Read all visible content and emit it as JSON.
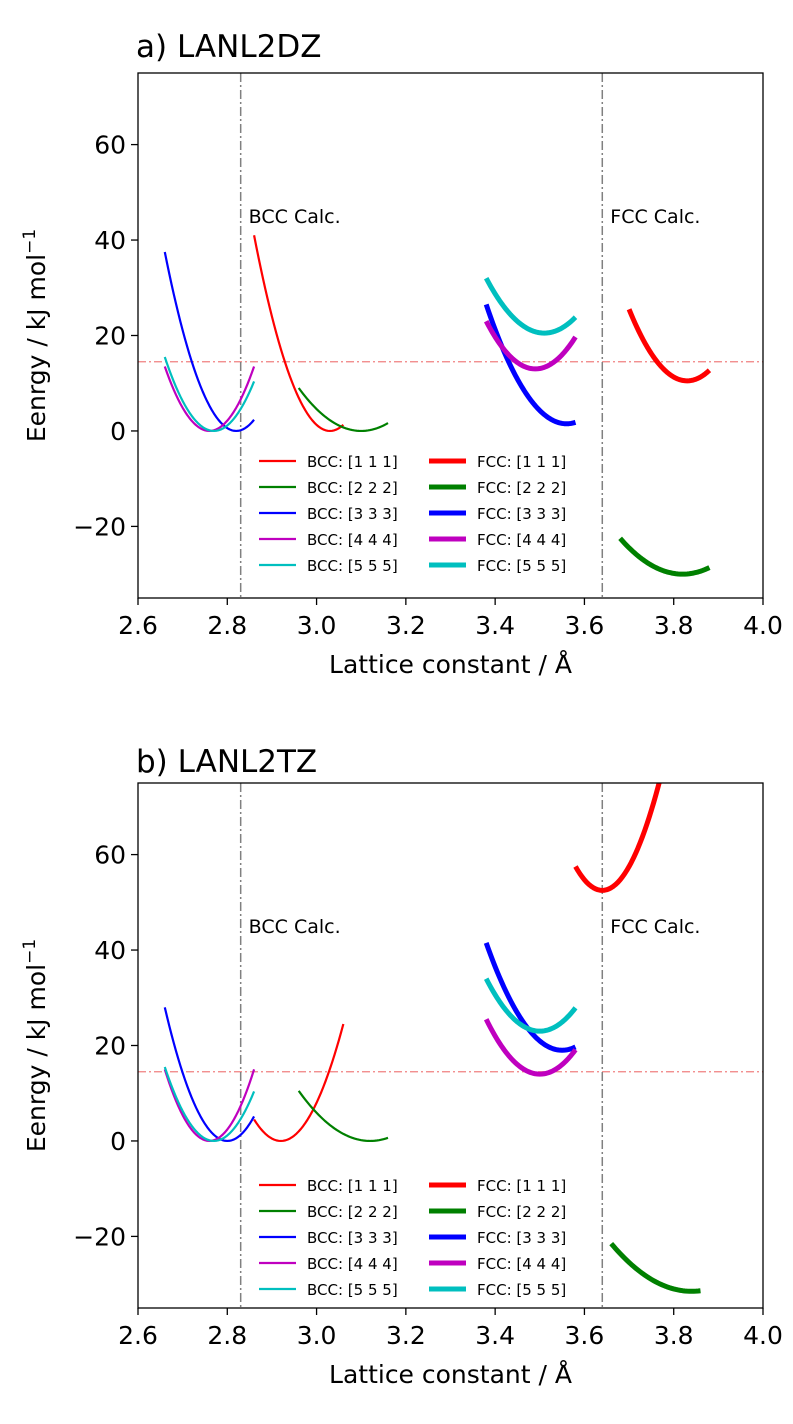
{
  "colors": {
    "red": "#ff0000",
    "green": "#008000",
    "blue": "#0000ff",
    "magenta": "#bf00bf",
    "cyan": "#00bfbf",
    "axis": "#000000",
    "vline": "#808080",
    "hline": "#f08080"
  },
  "chart_data": [
    {
      "type": "line",
      "title": "a) LANL2DZ",
      "xlabel": "Lattice constant / Å",
      "ylabel_main": "Eenrgy / kJ mol",
      "ylabel_sup": "−1",
      "xlim": [
        2.6,
        4.0
      ],
      "ylim": [
        -35,
        75
      ],
      "xticks": [
        2.6,
        2.8,
        3.0,
        3.2,
        3.4,
        3.6,
        3.8,
        4.0
      ],
      "xtick_labels": [
        "2.6",
        "2.8",
        "3.0",
        "3.2",
        "3.4",
        "3.6",
        "3.8",
        "4.0"
      ],
      "yticks": [
        -20,
        0,
        20,
        40,
        60
      ],
      "ytick_labels": [
        "−20",
        "0",
        "20",
        "40",
        "60"
      ],
      "vlines": [
        {
          "x": 2.83,
          "label": "BCC Calc."
        },
        {
          "x": 3.64,
          "label": "FCC Calc."
        }
      ],
      "calc_label_y": 45,
      "hline_y": 14.5,
      "series": [
        {
          "name": "BCC: [1 1 1]",
          "color": "red",
          "width": "thin",
          "x0": 2.86,
          "x1": 3.06,
          "xmin": 3.03,
          "ymin": 0,
          "y_left": 41
        },
        {
          "name": "BCC: [2 2 2]",
          "color": "green",
          "width": "thin",
          "x0": 2.96,
          "x1": 3.16,
          "xmin": 3.1,
          "ymin": 0,
          "y_left": 9
        },
        {
          "name": "BCC: [3 3 3]",
          "color": "blue",
          "width": "thin",
          "x0": 2.66,
          "x1": 2.86,
          "xmin": 2.82,
          "ymin": 0,
          "y_left": 37.5
        },
        {
          "name": "BCC: [4 4 4]",
          "color": "magenta",
          "width": "thin",
          "x0": 2.66,
          "x1": 2.86,
          "xmin": 2.76,
          "ymin": 0,
          "y_left": 13.5
        },
        {
          "name": "BCC: [5 5 5]",
          "color": "cyan",
          "width": "thin",
          "x0": 2.66,
          "x1": 2.86,
          "xmin": 2.77,
          "ymin": 0,
          "y_left": 15.5
        },
        {
          "name": "FCC: [1 1 1]",
          "color": "red",
          "width": "thick",
          "x0": 3.7,
          "x1": 3.88,
          "xmin": 3.83,
          "ymin": 10.5,
          "y_left": 25.5
        },
        {
          "name": "FCC: [2 2 2]",
          "color": "green",
          "width": "thick",
          "x0": 3.68,
          "x1": 3.88,
          "xmin": 3.82,
          "ymin": -30,
          "y_left": -22.5
        },
        {
          "name": "FCC: [3 3 3]",
          "color": "blue",
          "width": "thick",
          "x0": 3.38,
          "x1": 3.58,
          "xmin": 3.56,
          "ymin": 1.5,
          "y_left": 26.5
        },
        {
          "name": "FCC: [4 4 4]",
          "color": "magenta",
          "width": "thick",
          "x0": 3.38,
          "x1": 3.58,
          "xmin": 3.49,
          "ymin": 13,
          "y_left": 23
        },
        {
          "name": "FCC: [5 5 5]",
          "color": "cyan",
          "width": "thick",
          "x0": 3.38,
          "x1": 3.58,
          "xmin": 3.51,
          "ymin": 20.5,
          "y_left": 32
        }
      ]
    },
    {
      "type": "line",
      "title": "b) LANL2TZ",
      "xlabel": "Lattice constant / Å",
      "ylabel_main": "Eenrgy / kJ mol",
      "ylabel_sup": "−1",
      "xlim": [
        2.6,
        4.0
      ],
      "ylim": [
        -35,
        75
      ],
      "xticks": [
        2.6,
        2.8,
        3.0,
        3.2,
        3.4,
        3.6,
        3.8,
        4.0
      ],
      "xtick_labels": [
        "2.6",
        "2.8",
        "3.0",
        "3.2",
        "3.4",
        "3.6",
        "3.8",
        "4.0"
      ],
      "yticks": [
        -20,
        0,
        20,
        40,
        60
      ],
      "ytick_labels": [
        "−20",
        "0",
        "20",
        "40",
        "60"
      ],
      "vlines": [
        {
          "x": 2.83,
          "label": "BCC Calc."
        },
        {
          "x": 3.64,
          "label": "FCC Calc."
        }
      ],
      "calc_label_y": 45,
      "hline_y": 14.5,
      "series": [
        {
          "name": "BCC: [1 1 1]",
          "color": "red",
          "width": "thin",
          "x0": 2.86,
          "x1": 3.06,
          "xmin": 2.92,
          "ymin": 0,
          "y_left": 4.5
        },
        {
          "name": "BCC: [2 2 2]",
          "color": "green",
          "width": "thin",
          "x0": 2.96,
          "x1": 3.16,
          "xmin": 3.12,
          "ymin": 0,
          "y_left": 10.5
        },
        {
          "name": "BCC: [3 3 3]",
          "color": "blue",
          "width": "thin",
          "x0": 2.66,
          "x1": 2.86,
          "xmin": 2.8,
          "ymin": 0,
          "y_left": 28
        },
        {
          "name": "BCC: [4 4 4]",
          "color": "magenta",
          "width": "thin",
          "x0": 2.66,
          "x1": 2.86,
          "xmin": 2.76,
          "ymin": 0,
          "y_left": 15
        },
        {
          "name": "BCC: [5 5 5]",
          "color": "cyan",
          "width": "thin",
          "x0": 2.66,
          "x1": 2.86,
          "xmin": 2.77,
          "ymin": 0,
          "y_left": 15.5
        },
        {
          "name": "FCC: [1 1 1]",
          "color": "red",
          "width": "thick",
          "x0": 3.58,
          "x1": 3.78,
          "xmin": 3.64,
          "ymin": 52.5,
          "y_left": 57.5
        },
        {
          "name": "FCC: [2 2 2]",
          "color": "green",
          "width": "thick",
          "x0": 3.66,
          "x1": 3.86,
          "xmin": 3.84,
          "ymin": -31.5,
          "y_left": -21.5
        },
        {
          "name": "FCC: [3 3 3]",
          "color": "blue",
          "width": "thick",
          "x0": 3.38,
          "x1": 3.58,
          "xmin": 3.55,
          "ymin": 19,
          "y_left": 41.5
        },
        {
          "name": "FCC: [4 4 4]",
          "color": "magenta",
          "width": "thick",
          "x0": 3.38,
          "x1": 3.58,
          "xmin": 3.5,
          "ymin": 14,
          "y_left": 25.5
        },
        {
          "name": "FCC: [5 5 5]",
          "color": "cyan",
          "width": "thick",
          "x0": 3.38,
          "x1": 3.58,
          "xmin": 3.5,
          "ymin": 23,
          "y_left": 34
        }
      ]
    }
  ]
}
